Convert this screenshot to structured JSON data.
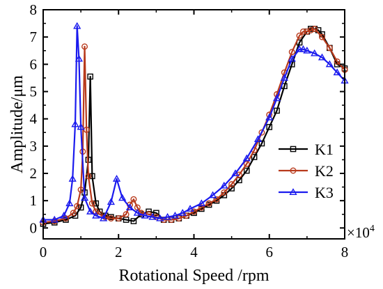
{
  "chart_data": {
    "type": "line",
    "xlabel": "Rotational Speed /rpm",
    "ylabel": "Amplitude/μm",
    "x_multiplier_base": "×10",
    "x_multiplier_exp": "4",
    "xlim": [
      0,
      8
    ],
    "ylim": [
      -0.4,
      8
    ],
    "x_ticks": [
      "0",
      "2",
      "4",
      "6",
      "8"
    ],
    "y_ticks": [
      "0",
      "1",
      "2",
      "3",
      "4",
      "5",
      "6",
      "7",
      "8"
    ],
    "grid": false,
    "legend_position": "right-middle",
    "series": [
      {
        "name": "K1",
        "color": "#000000",
        "marker": "square",
        "x": [
          0,
          0.3,
          0.6,
          0.85,
          1.0,
          1.1,
          1.2,
          1.25,
          1.3,
          1.4,
          1.5,
          1.65,
          1.8,
          2.0,
          2.2,
          2.4,
          2.6,
          2.8,
          3.0,
          3.2,
          3.4,
          3.6,
          3.8,
          4.0,
          4.2,
          4.4,
          4.6,
          4.8,
          5.0,
          5.2,
          5.4,
          5.6,
          5.8,
          6.0,
          6.2,
          6.4,
          6.6,
          6.8,
          7.0,
          7.1,
          7.2,
          7.3,
          7.4,
          7.6,
          7.8,
          8.0
        ],
        "y": [
          0.15,
          0.2,
          0.3,
          0.45,
          0.75,
          1.3,
          2.5,
          5.55,
          1.9,
          0.9,
          0.6,
          0.45,
          0.4,
          0.35,
          0.3,
          0.25,
          0.5,
          0.6,
          0.55,
          0.3,
          0.3,
          0.35,
          0.45,
          0.55,
          0.7,
          0.85,
          1.0,
          1.2,
          1.45,
          1.75,
          2.1,
          2.6,
          3.1,
          3.7,
          4.3,
          5.2,
          6.0,
          6.8,
          7.2,
          7.3,
          7.3,
          7.25,
          7.1,
          6.6,
          6.0,
          5.85
        ]
      },
      {
        "name": "K2",
        "color": "#b83a1c",
        "marker": "circle",
        "x": [
          0,
          0.3,
          0.6,
          0.8,
          0.9,
          1.0,
          1.05,
          1.1,
          1.15,
          1.2,
          1.3,
          1.4,
          1.5,
          1.65,
          1.8,
          2.0,
          2.2,
          2.3,
          2.4,
          2.5,
          2.6,
          2.8,
          3.0,
          3.2,
          3.4,
          3.6,
          3.8,
          4.0,
          4.2,
          4.4,
          4.6,
          4.8,
          5.0,
          5.2,
          5.4,
          5.6,
          5.8,
          6.0,
          6.2,
          6.4,
          6.6,
          6.8,
          6.9,
          7.0,
          7.1,
          7.2,
          7.4,
          7.6,
          7.8,
          8.0
        ],
        "y": [
          0.2,
          0.25,
          0.35,
          0.55,
          0.8,
          1.4,
          2.8,
          6.65,
          3.6,
          1.9,
          0.9,
          0.6,
          0.5,
          0.4,
          0.35,
          0.35,
          0.5,
          0.85,
          1.05,
          0.75,
          0.55,
          0.5,
          0.4,
          0.3,
          0.3,
          0.35,
          0.45,
          0.6,
          0.75,
          0.9,
          1.05,
          1.3,
          1.6,
          1.95,
          2.35,
          2.85,
          3.5,
          4.15,
          4.9,
          5.7,
          6.45,
          7.05,
          7.2,
          7.2,
          7.25,
          7.3,
          7.0,
          6.6,
          6.1,
          5.8
        ]
      },
      {
        "name": "K3",
        "color": "#1a1aee",
        "marker": "triangle",
        "x": [
          0,
          0.3,
          0.55,
          0.7,
          0.78,
          0.85,
          0.9,
          0.95,
          1.0,
          1.1,
          1.25,
          1.4,
          1.6,
          1.8,
          1.95,
          2.1,
          2.3,
          2.5,
          2.7,
          2.9,
          3.1,
          3.3,
          3.5,
          3.7,
          3.9,
          4.2,
          4.5,
          4.8,
          5.1,
          5.4,
          5.7,
          6.0,
          6.2,
          6.4,
          6.6,
          6.8,
          6.9,
          7.0,
          7.2,
          7.4,
          7.6,
          7.8,
          8.0
        ],
        "y": [
          0.3,
          0.3,
          0.45,
          0.9,
          1.8,
          3.8,
          7.4,
          6.2,
          3.7,
          1.1,
          0.6,
          0.45,
          0.35,
          0.95,
          1.8,
          1.1,
          0.75,
          0.55,
          0.45,
          0.4,
          0.35,
          0.4,
          0.45,
          0.55,
          0.7,
          0.9,
          1.2,
          1.55,
          2.0,
          2.55,
          3.25,
          4.05,
          4.75,
          5.5,
          6.2,
          6.55,
          6.55,
          6.5,
          6.4,
          6.25,
          6.0,
          5.7,
          5.4
        ]
      }
    ]
  }
}
